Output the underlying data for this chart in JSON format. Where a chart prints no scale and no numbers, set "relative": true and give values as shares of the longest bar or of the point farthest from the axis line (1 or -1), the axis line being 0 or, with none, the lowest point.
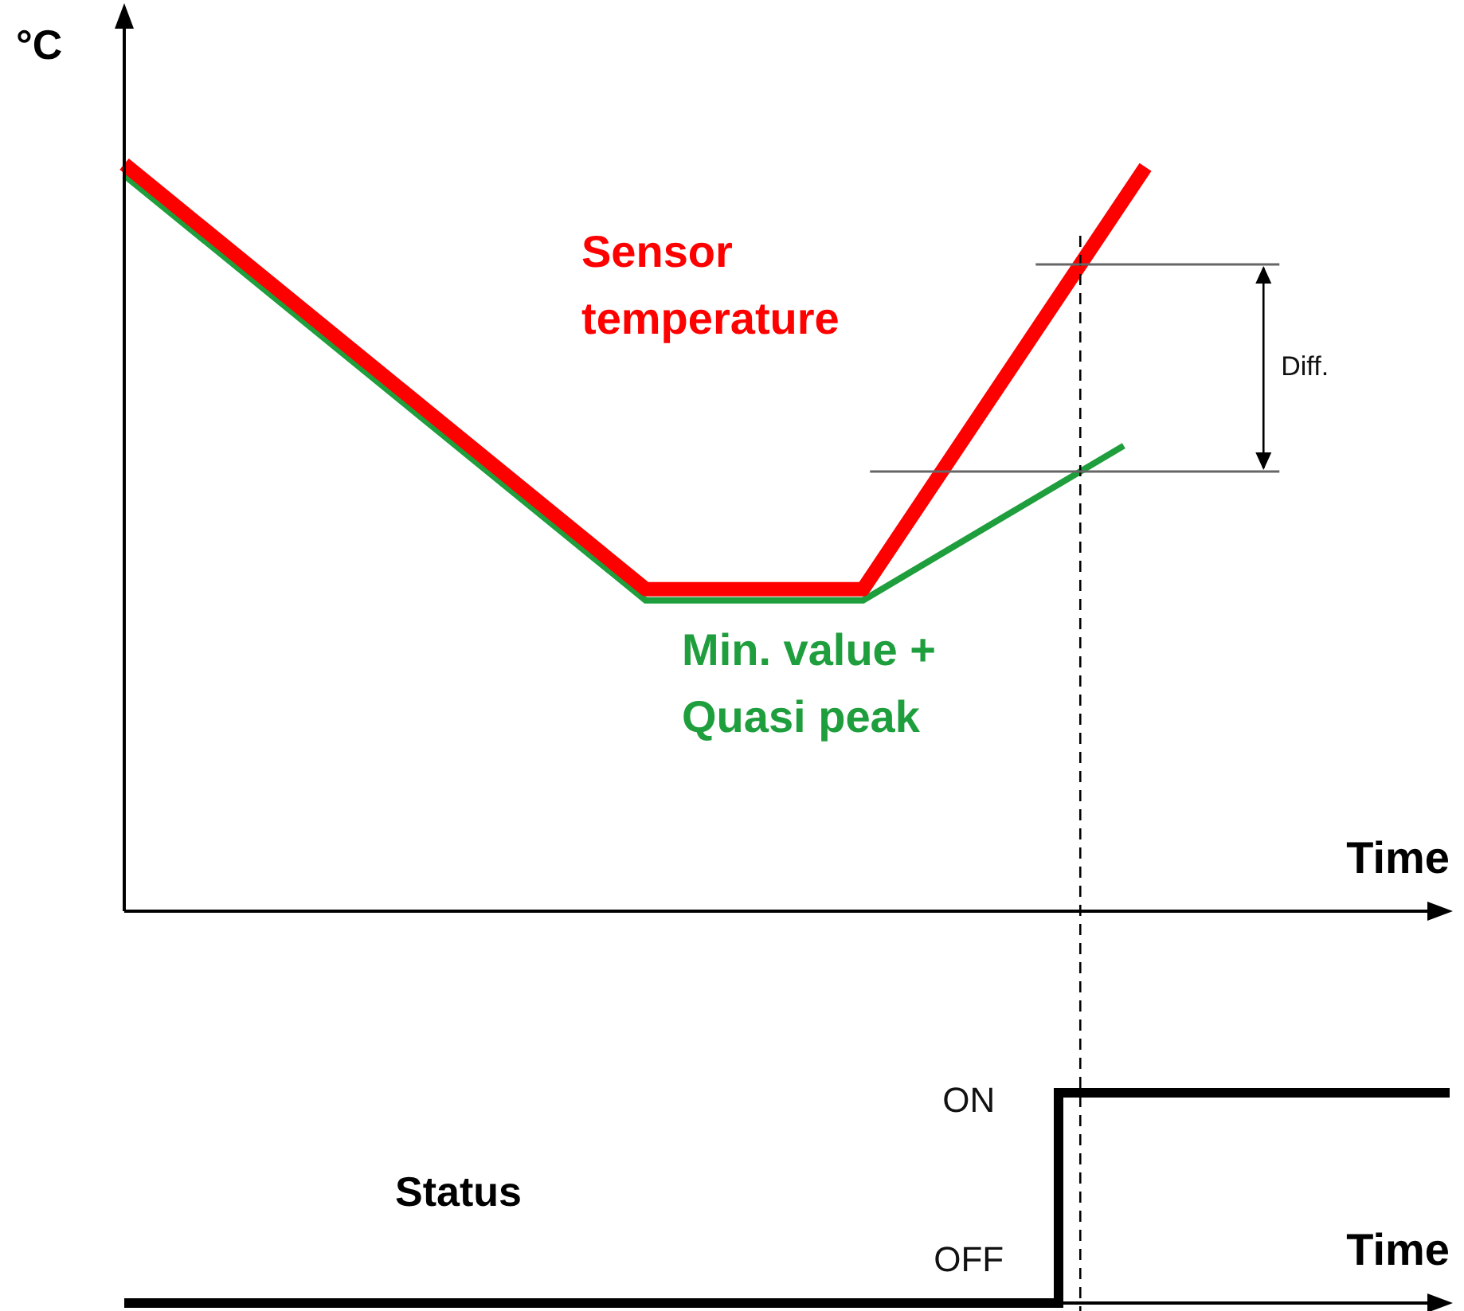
{
  "chart_data": [
    {
      "type": "line",
      "relative": true,
      "ylabel": "°C",
      "xlabel": "Time",
      "categories": [
        null,
        null,
        null,
        null,
        null,
        null,
        null,
        null,
        null,
        null,
        null,
        null,
        null,
        null,
        null,
        null,
        null,
        null,
        null,
        null,
        null,
        null,
        null,
        null,
        null,
        null,
        null,
        null,
        null,
        null,
        null,
        null,
        null,
        null,
        null,
        null,
        null,
        null,
        null,
        null,
        null,
        null,
        null,
        null,
        null,
        null,
        null,
        null,
        null,
        null,
        null,
        null,
        null,
        null,
        null,
        null,
        null,
        null,
        null,
        null,
        null,
        null
      ],
      "series": [
        {
          "name": "Min. value + Quasi peak",
          "color": "#1e9e3c",
          "values": [
            0.985,
            null,
            null,
            null,
            null,
            null,
            null,
            null,
            null,
            null,
            null,
            null,
            null,
            null,
            null,
            null,
            null,
            null,
            null,
            null,
            null,
            null,
            null,
            null,
            0.416,
            null,
            null,
            null,
            null,
            null,
            null,
            null,
            null,
            null,
            0.416,
            null,
            null,
            null,
            null,
            null,
            null,
            null,
            null,
            null,
            null,
            null,
            0.623,
            null,
            null,
            null,
            null,
            null,
            null,
            null,
            null,
            null,
            null,
            null,
            null,
            null,
            null,
            null
          ]
        },
        {
          "name": "Sensor temperature",
          "color": "#ff0000",
          "values": [
            1,
            null,
            null,
            null,
            null,
            null,
            null,
            null,
            null,
            null,
            null,
            null,
            null,
            null,
            null,
            null,
            null,
            null,
            null,
            null,
            null,
            null,
            null,
            null,
            0.431,
            null,
            null,
            null,
            null,
            null,
            null,
            null,
            null,
            null,
            0.431,
            null,
            null,
            null,
            null,
            null,
            null,
            null,
            null,
            null,
            null,
            null,
            null,
            0.996,
            null,
            null,
            null,
            null,
            null,
            null,
            null,
            null,
            null,
            null,
            null,
            null,
            null,
            null
          ]
        }
      ],
      "annotations": [
        "Diff."
      ]
    },
    {
      "type": "step",
      "relative": true,
      "ylabel": "Status",
      "xlabel": "Time",
      "categories": [
        null,
        null,
        null,
        null,
        null,
        null,
        null,
        null,
        null,
        null,
        null,
        null,
        null,
        null,
        null,
        null,
        null,
        null,
        null,
        null,
        null,
        null,
        null,
        null,
        null,
        null,
        null,
        null,
        null,
        null,
        null,
        null,
        null,
        null,
        null,
        null,
        null,
        null,
        null,
        null,
        null,
        null,
        null,
        null,
        null,
        null,
        null,
        null,
        null,
        null,
        null,
        null,
        null,
        null,
        null,
        null,
        null,
        null,
        null,
        null,
        null,
        null
      ],
      "color": "#000000",
      "values": [
        0,
        0,
        0,
        0,
        0,
        0,
        0,
        0,
        0,
        0,
        0,
        0,
        0,
        0,
        0,
        0,
        0,
        0,
        0,
        0,
        0,
        0,
        0,
        0,
        0,
        0,
        0,
        0,
        0,
        0,
        0,
        0,
        0,
        0,
        0,
        0,
        0,
        0,
        0,
        0,
        0,
        0,
        0,
        0,
        1,
        1,
        1,
        1,
        1,
        1,
        1,
        1,
        1,
        1,
        1,
        1,
        1,
        1,
        1,
        1,
        1,
        1
      ],
      "annotations": [
        "ON",
        "OFF"
      ]
    }
  ]
}
